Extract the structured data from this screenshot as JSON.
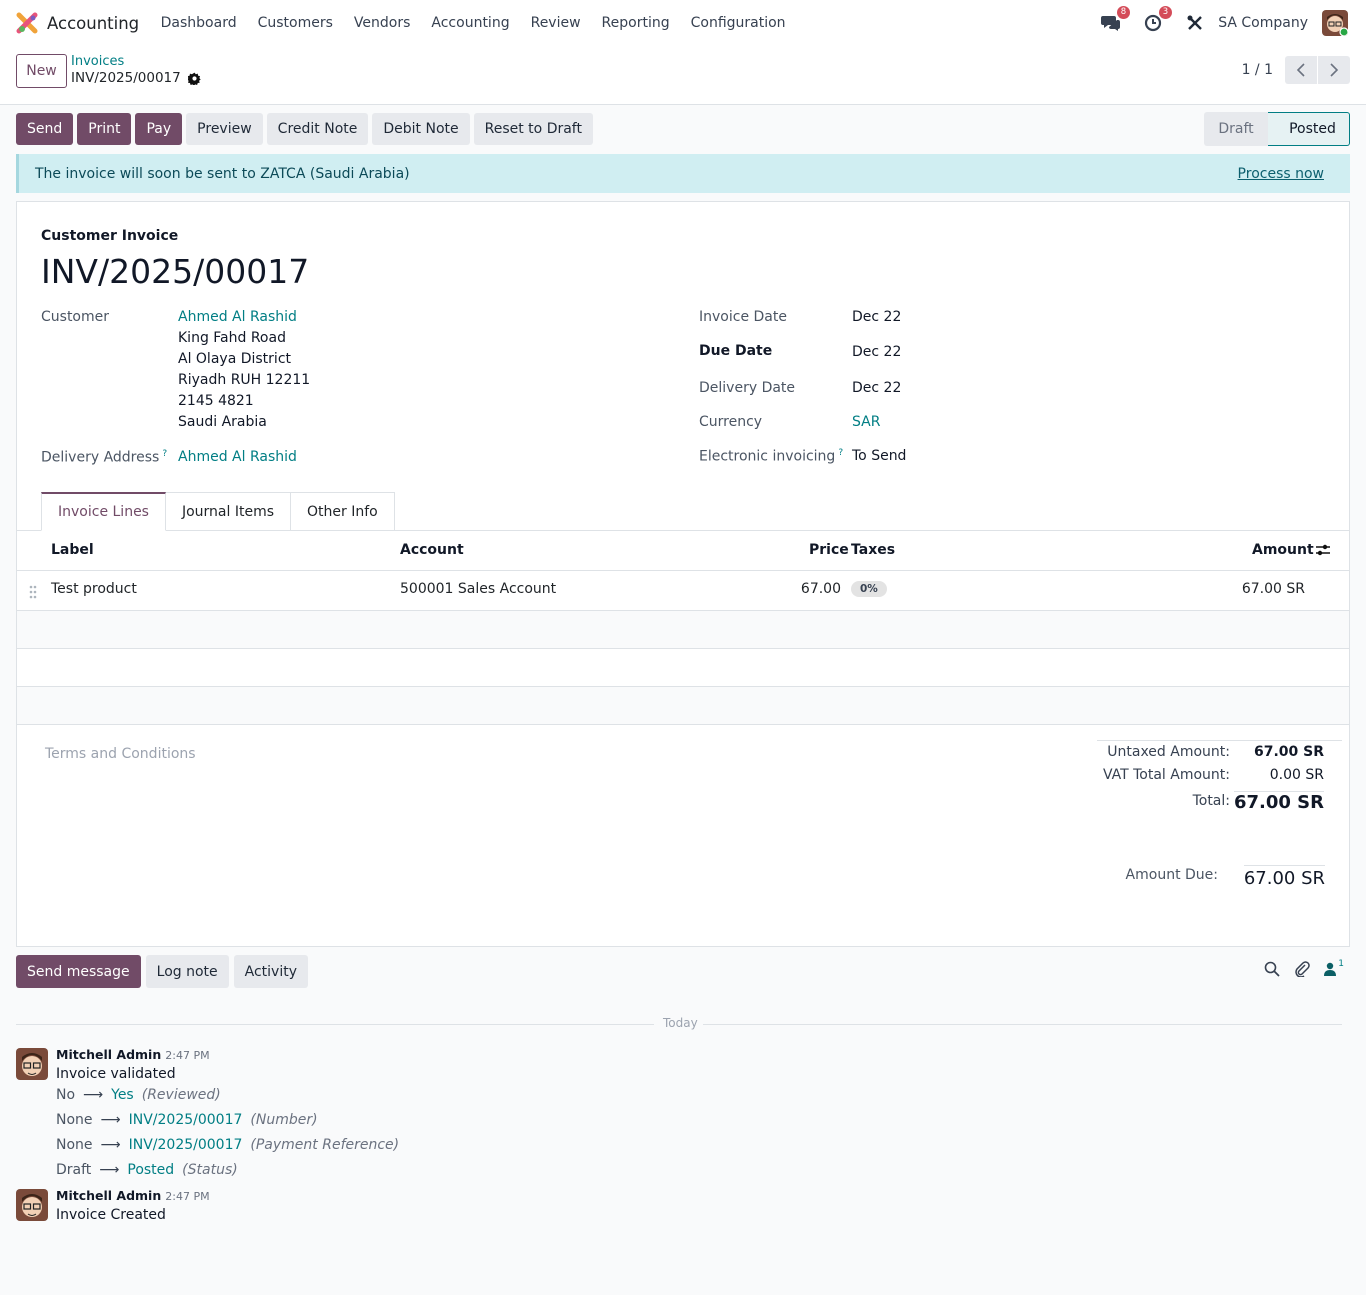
{
  "navbar": {
    "app_name": "Accounting",
    "menu": [
      "Dashboard",
      "Customers",
      "Vendors",
      "Accounting",
      "Review",
      "Reporting",
      "Configuration"
    ],
    "messages_count": "8",
    "activities_count": "3",
    "company": "SA Company"
  },
  "control": {
    "new_label": "New",
    "breadcrumb_parent": "Invoices",
    "breadcrumb_current": "INV/2025/00017",
    "pager": "1 / 1"
  },
  "actions": {
    "send": "Send",
    "print": "Print",
    "pay": "Pay",
    "preview": "Preview",
    "credit_note": "Credit Note",
    "debit_note": "Debit Note",
    "reset": "Reset to Draft"
  },
  "status": {
    "draft": "Draft",
    "posted": "Posted",
    "current": "Posted"
  },
  "alert": {
    "text": "The invoice will soon be sent to ZATCA (Saudi Arabia)",
    "link": "Process now"
  },
  "invoice": {
    "type": "Customer Invoice",
    "number": "INV/2025/00017",
    "customer_label": "Customer",
    "customer_name": "Ahmed Al Rashid",
    "address": [
      "King Fahd Road",
      "Al Olaya District",
      "Riyadh RUH 12211",
      "2145 4821",
      "Saudi Arabia"
    ],
    "delivery_address_label": "Delivery Address",
    "delivery_address": "Ahmed Al Rashid",
    "invoice_date_label": "Invoice Date",
    "invoice_date": "Dec 22",
    "due_date_label": "Due Date",
    "due_date": "Dec 22",
    "delivery_date_label": "Delivery Date",
    "delivery_date": "Dec 22",
    "currency_label": "Currency",
    "currency": "SAR",
    "einvoice_label": "Electronic invoicing",
    "einvoice": "To Send"
  },
  "tabs": [
    "Invoice Lines",
    "Journal Items",
    "Other Info"
  ],
  "lines": {
    "columns": {
      "label": "Label",
      "account": "Account",
      "price": "Price",
      "taxes": "Taxes",
      "amount": "Amount"
    },
    "rows": [
      {
        "label": "Test product",
        "account": "500001 Sales Account",
        "price": "67.00",
        "tax": "0%",
        "amount": "67.00 SR"
      }
    ]
  },
  "terms_placeholder": "Terms and Conditions",
  "totals": {
    "untaxed_label": "Untaxed Amount:",
    "untaxed": "67.00 SR",
    "vat_label": "VAT Total Amount:",
    "vat": "0.00 SR",
    "total_label": "Total:",
    "total": "67.00 SR",
    "due_label": "Amount Due:",
    "due": "67.00 SR"
  },
  "chatter": {
    "send_message": "Send message",
    "log_note": "Log note",
    "activity": "Activity",
    "followers": "1",
    "today": "Today",
    "messages": [
      {
        "author": "Mitchell Admin",
        "time": "2:47 PM",
        "body": "Invoice validated",
        "tracking": [
          {
            "old": "No",
            "new": "Yes",
            "field": "(Reviewed)"
          },
          {
            "old": "None",
            "new": "INV/2025/00017",
            "field": "(Number)"
          },
          {
            "old": "None",
            "new": "INV/2025/00017",
            "field": "(Payment Reference)"
          },
          {
            "old": "Draft",
            "new": "Posted",
            "field": "(Status)"
          }
        ]
      },
      {
        "author": "Mitchell Admin",
        "time": "2:47 PM",
        "body": "Invoice Created"
      }
    ]
  },
  "colors": {
    "primary": "#714b67",
    "link": "#017e84",
    "badge": "#d44c59",
    "alert_bg": "#d0eef2"
  },
  "icons": [
    "odoo-logo-icon",
    "chat-icon",
    "clock-icon",
    "tools-icon",
    "gear-icon",
    "chevron-left-icon",
    "chevron-right-icon",
    "drag-handle-icon",
    "column-settings-icon",
    "search-icon",
    "paperclip-icon",
    "follower-icon"
  ]
}
